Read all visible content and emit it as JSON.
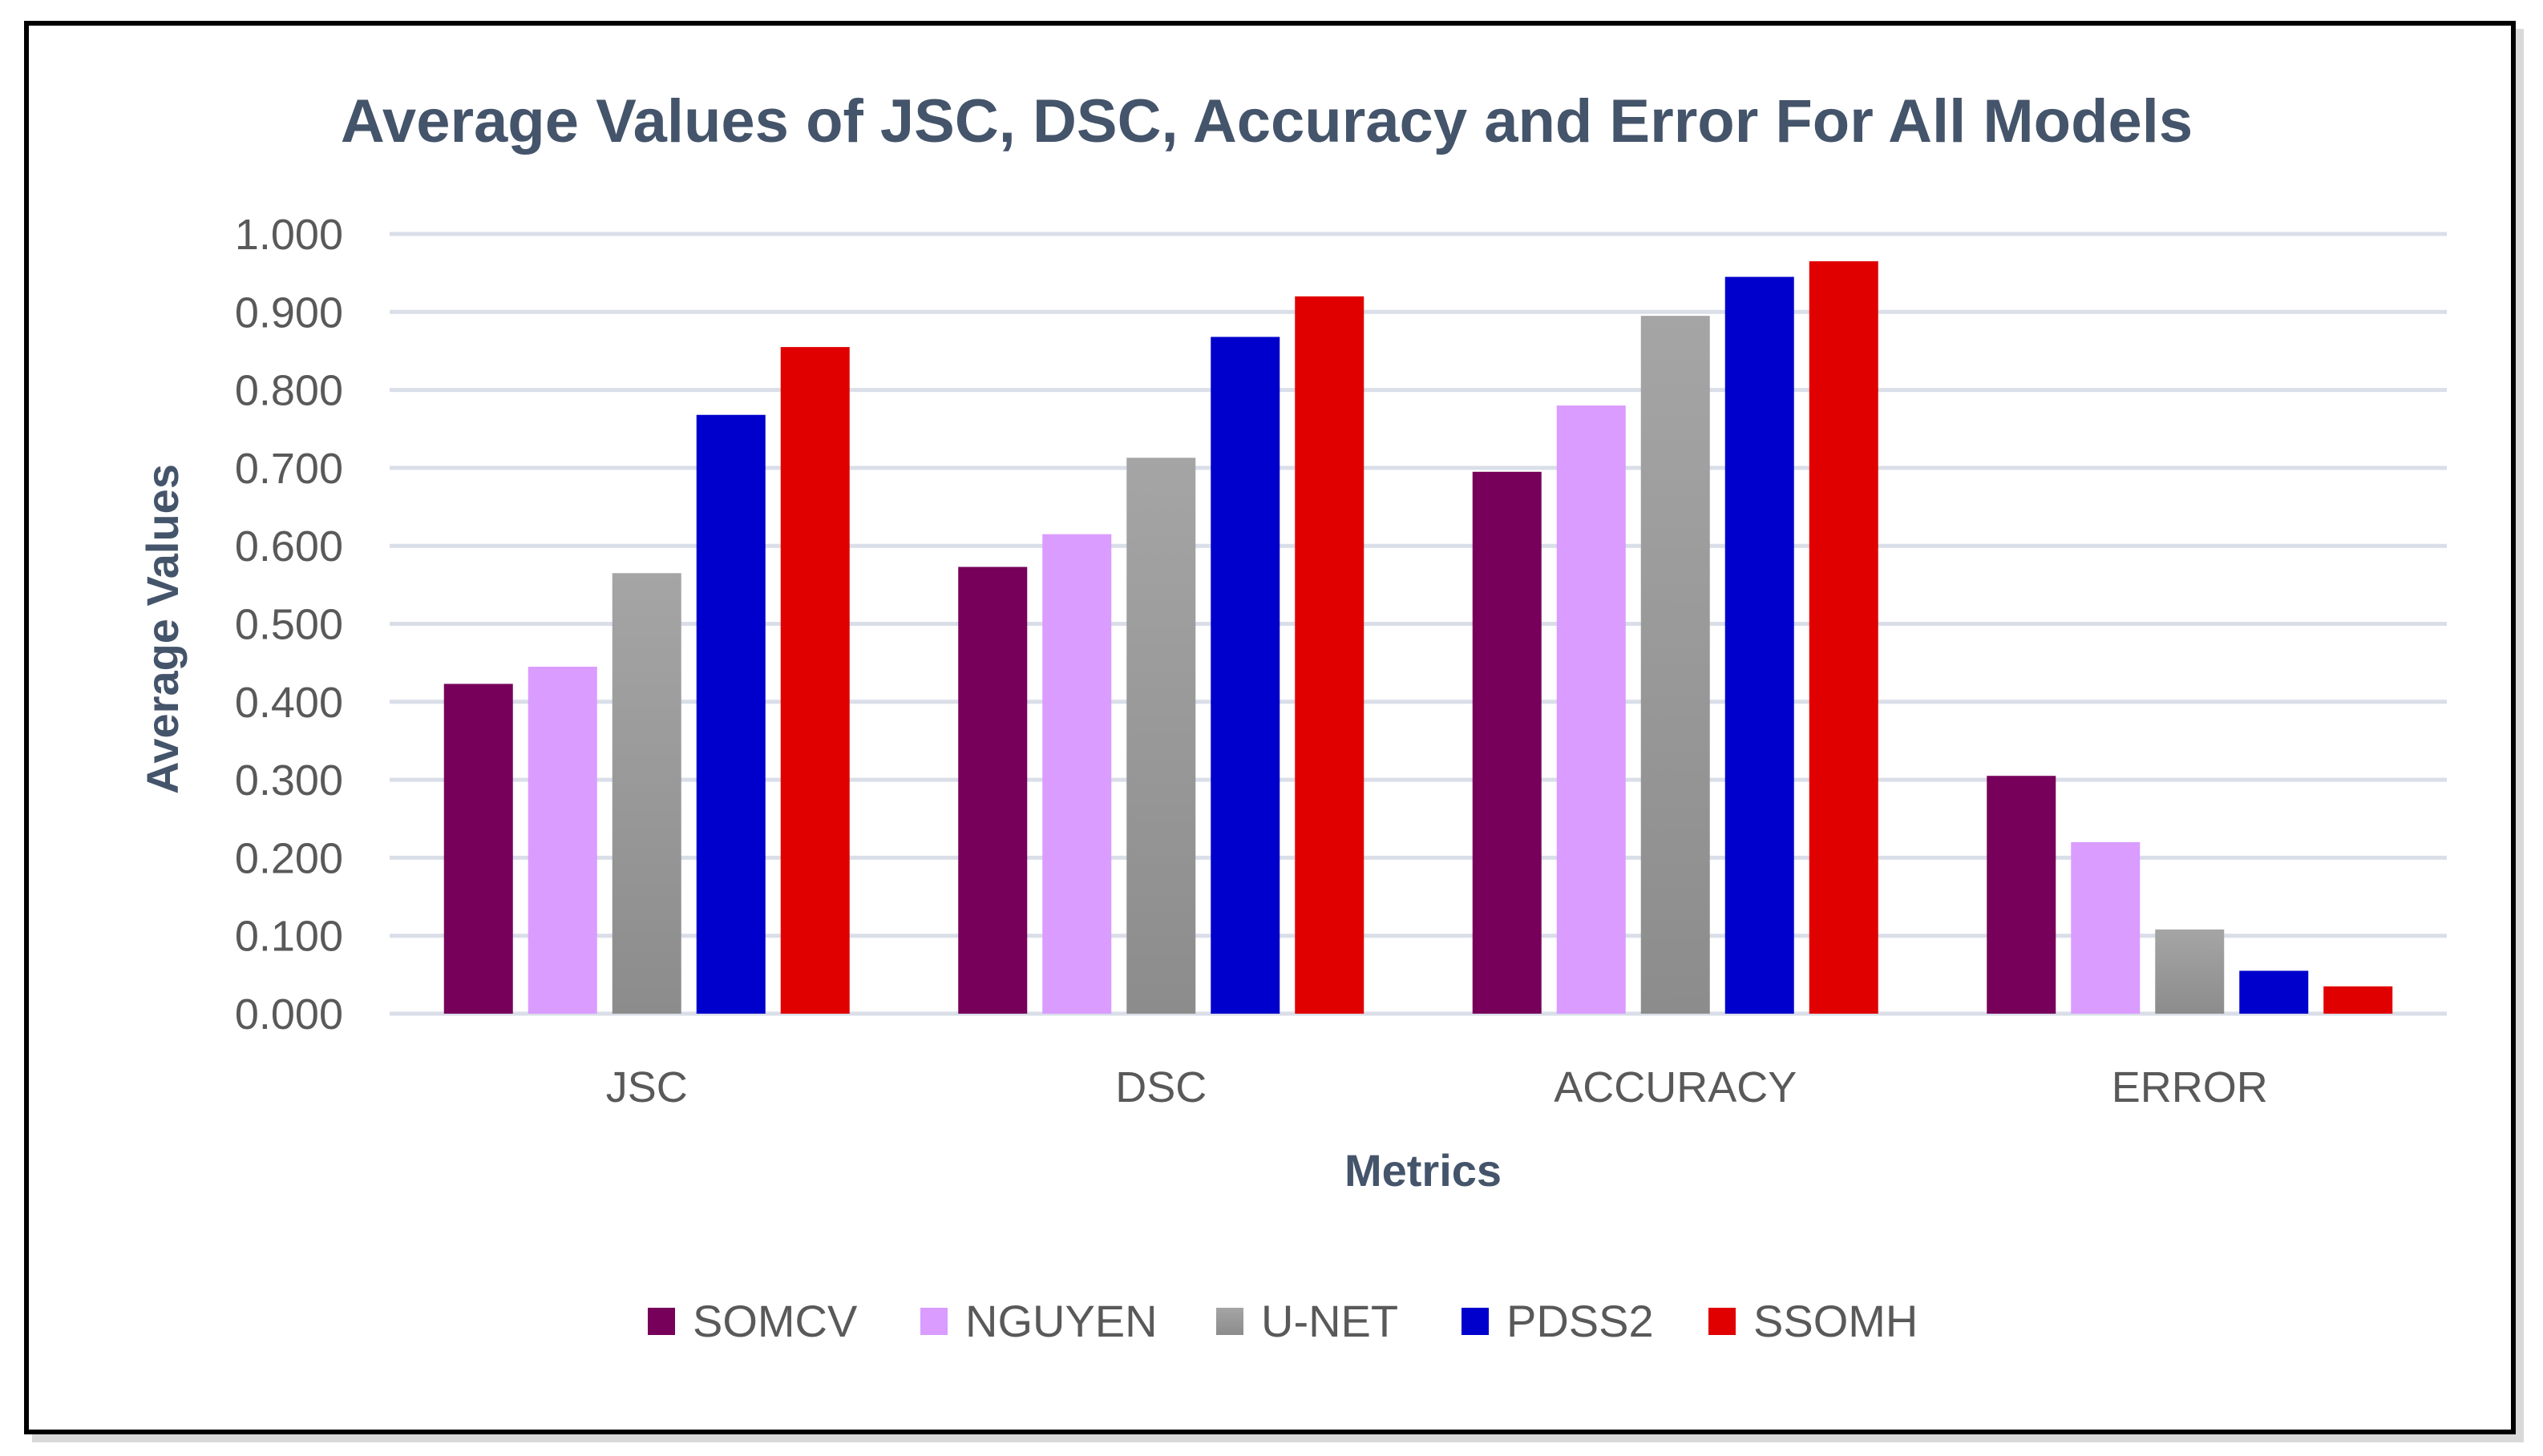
{
  "chart_data": {
    "type": "bar",
    "title": "Average Values of JSC, DSC, Accuracy and Error For All Models",
    "xlabel": "Metrics",
    "ylabel": "Average Values",
    "ylim": [
      0,
      1
    ],
    "yticks": [
      "0.000",
      "0.100",
      "0.200",
      "0.300",
      "0.400",
      "0.500",
      "0.600",
      "0.700",
      "0.800",
      "0.900",
      "1.000"
    ],
    "grid": true,
    "legend": "bottom",
    "categories": [
      "JSC",
      "DSC",
      "ACCURACY",
      "ERROR"
    ],
    "series": [
      {
        "name": "SOMCV",
        "color": "#76005a",
        "values": [
          0.423,
          0.573,
          0.695,
          0.305
        ]
      },
      {
        "name": "NGUYEN",
        "color": "#da9cff",
        "values": [
          0.445,
          0.615,
          0.78,
          0.22
        ]
      },
      {
        "name": "U-NET",
        "color": "#a5a5a5",
        "gradient_end": "#8c8c8c",
        "values": [
          0.565,
          0.713,
          0.895,
          0.108
        ]
      },
      {
        "name": "PDSS2",
        "color": "#0000cc",
        "values": [
          0.768,
          0.868,
          0.945,
          0.055
        ]
      },
      {
        "name": "SSOMH",
        "color": "#e00000",
        "values": [
          0.855,
          0.92,
          0.965,
          0.035
        ]
      }
    ]
  }
}
